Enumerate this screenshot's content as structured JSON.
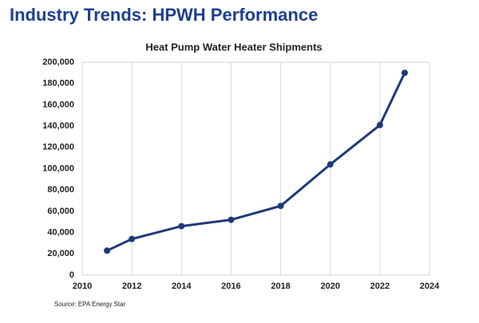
{
  "slide_title": "Industry Trends: HPWH Performance",
  "source": "Source: EPA Energy Star",
  "chart_data": {
    "type": "line",
    "title": "Heat Pump Water Heater Shipments",
    "x": [
      2011,
      2012,
      2014,
      2016,
      2018,
      2020,
      2022,
      2023
    ],
    "series": [
      {
        "name": "Shipments",
        "color": "#1f3a7a",
        "values": [
          23000,
          34000,
          46000,
          52000,
          65000,
          104000,
          141000,
          190000
        ]
      }
    ],
    "xlim": [
      2010,
      2024
    ],
    "xticks": [
      2010,
      2012,
      2014,
      2016,
      2018,
      2020,
      2022,
      2024
    ],
    "ylim": [
      0,
      200000
    ],
    "yticks": [
      0,
      {
        "value": 20000,
        "label": "20,000"
      },
      {
        "value": 40000,
        "label": "40,000"
      },
      {
        "value": 60000,
        "label": "60,000"
      },
      {
        "value": 80000,
        "label": "80,000"
      },
      {
        "value": 100000,
        "label": "100,000"
      },
      {
        "value": 120000,
        "label": "120,000"
      },
      {
        "value": 140000,
        "label": "140,000"
      },
      {
        "value": 160000,
        "label": "160,000"
      },
      {
        "value": 180000,
        "label": "180,000"
      },
      {
        "value": 200000,
        "label": "200,000"
      }
    ],
    "grid": "x"
  }
}
